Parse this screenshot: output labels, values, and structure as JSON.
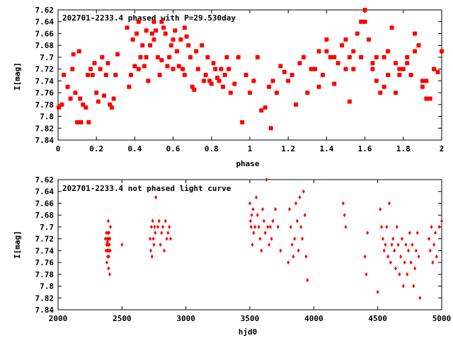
{
  "colors": {
    "points": "#ff0000",
    "axes": "#000000",
    "background": "#ffffff"
  },
  "chart_data": [
    {
      "type": "scatter",
      "title": "202701-2233.4 phased with P=29.530day",
      "xlabel": "phase",
      "ylabel": "I[mag]",
      "xlim": [
        0,
        2
      ],
      "ylim": [
        7.84,
        7.62
      ],
      "y_inverted": true,
      "grid": false,
      "x_ticks": [
        "0",
        "0.2",
        "0.4",
        "0.6",
        "0.8",
        "1",
        "1.2",
        "1.4",
        "1.6",
        "1.8",
        "2"
      ],
      "y_ticks": [
        "7.62",
        "7.64",
        "7.66",
        "7.68",
        "7.7",
        "7.72",
        "7.74",
        "7.76",
        "7.78",
        "7.8",
        "7.82",
        "7.84"
      ],
      "marker": "filled-square",
      "series": [
        {
          "x": [
            0.004,
            0.02,
            0.03,
            0.05,
            0.065,
            0.075,
            0.08,
            0.09,
            0.1,
            0.11,
            0.115,
            0.12,
            0.13,
            0.145,
            0.155,
            0.16,
            0.17,
            0.18,
            0.19,
            0.2,
            0.21,
            0.22,
            0.23,
            0.24,
            0.25,
            0.26,
            0.27,
            0.28,
            0.29,
            0.3,
            0.31,
            0.36,
            0.37,
            0.38,
            0.39,
            0.4,
            0.41,
            0.42,
            0.43,
            0.44,
            0.45,
            0.46,
            0.47,
            0.48,
            0.49,
            0.5,
            0.51,
            0.52,
            0.53,
            0.54,
            0.55,
            0.56,
            0.57,
            0.58,
            0.59,
            0.6,
            0.61,
            0.62,
            0.63,
            0.64,
            0.65,
            0.66,
            0.67,
            0.68,
            0.69,
            0.7,
            0.71,
            0.72,
            0.73,
            0.75,
            0.76,
            0.77,
            0.78,
            0.79,
            0.8,
            0.81,
            0.82,
            0.83,
            0.84,
            0.85,
            0.86,
            0.87,
            0.88,
            0.89,
            0.9,
            0.92,
            0.94,
            0.96,
            0.98,
            1.0,
            1.02,
            1.04,
            1.06,
            1.08,
            1.1,
            1.11,
            1.12,
            1.14,
            1.16,
            1.18,
            1.2,
            1.22,
            1.24,
            1.26,
            1.28,
            1.3,
            1.32,
            1.34,
            1.36,
            1.38,
            1.4,
            1.42,
            1.44,
            1.46,
            1.48,
            1.5,
            1.52,
            1.54,
            1.56,
            1.58,
            1.6,
            1.62,
            1.64,
            1.66,
            1.68,
            1.7,
            1.72,
            1.74,
            1.76,
            1.78,
            1.8,
            1.82,
            1.84,
            1.86,
            1.88,
            1.9,
            1.92,
            1.94,
            1.96,
            1.98,
            2.0
          ],
          "y": [
            7.785,
            7.78,
            7.73,
            7.75,
            7.77,
            7.72,
            7.695,
            7.76,
            7.81,
            7.69,
            7.77,
            7.81,
            7.78,
            7.785,
            7.73,
            7.81,
            7.72,
            7.73,
            7.71,
            7.76,
            7.775,
            7.72,
            7.7,
            7.765,
            7.73,
            7.71,
            7.78,
            7.785,
            7.77,
            7.73,
            7.695,
            7.65,
            7.75,
            7.73,
            7.67,
            7.715,
            7.66,
            7.64,
            7.7,
            7.68,
            7.715,
            7.655,
            7.74,
            7.68,
            7.66,
            7.64,
            7.655,
            7.7,
            7.73,
            7.705,
            7.65,
            7.66,
            7.715,
            7.7,
            7.68,
            7.72,
            7.655,
            7.69,
            7.715,
            7.67,
            7.72,
            7.73,
            7.665,
            7.68,
            7.7,
            7.75,
            7.755,
            7.69,
            7.72,
            7.68,
            7.74,
            7.73,
            7.7,
            7.74,
            7.745,
            7.71,
            7.72,
            7.735,
            7.74,
            7.72,
            7.75,
            7.73,
            7.7,
            7.72,
            7.76,
            7.745,
            7.7,
            7.81,
            7.73,
            7.76,
            7.74,
            7.7,
            7.79,
            7.785,
            7.75,
            7.82,
            7.74,
            7.76,
            7.715,
            7.725,
            7.74,
            7.73,
            7.78,
            7.71,
            7.7,
            7.76,
            7.72,
            7.72,
            7.69,
            7.73,
            7.67,
            7.7,
            7.745,
            7.71,
            7.68,
            7.72,
            7.775,
            7.69,
            7.66,
            7.7,
            7.64,
            7.67,
            7.72,
            7.7,
            7.76,
            7.7,
            7.73,
            7.65,
            7.71,
            7.72,
            7.72,
            7.7,
            7.73,
            7.66,
            7.68,
            7.75,
            7.74,
            7.77,
            7.72,
            7.725,
            7.69
          ],
          "extra_points": {
            "x": [
              1.36,
              1.4,
              1.44,
              1.5,
              1.54,
              1.6,
              1.64,
              1.72,
              1.76,
              1.84,
              1.9,
              1.96,
              0.6,
              0.66,
              0.54,
              0.5,
              0.46,
              0.42,
              1.52,
              1.58,
              1.66,
              1.7,
              1.78,
              1.82,
              1.86,
              1.92
            ],
            "y": [
              7.75,
              7.69,
              7.7,
              7.67,
              7.72,
              7.62,
              7.71,
              7.69,
              7.76,
              7.73,
              7.74,
              7.72,
              7.67,
              7.65,
              7.64,
              7.67,
              7.7,
              7.72,
              7.7,
              7.64,
              7.74,
              7.75,
              7.73,
              7.71,
              7.69,
              7.77
            ]
          }
        }
      ]
    },
    {
      "type": "scatter",
      "title": "202701-2233.4 not phased light curve",
      "xlabel": "hjd0",
      "ylabel": "I[mag]",
      "xlim": [
        2000,
        5000
      ],
      "ylim": [
        7.84,
        7.62
      ],
      "y_inverted": true,
      "grid": false,
      "x_ticks": [
        "2000",
        "2500",
        "3000",
        "3500",
        "4000",
        "4500",
        "5000"
      ],
      "y_ticks": [
        "7.62",
        "7.64",
        "7.66",
        "7.68",
        "7.7",
        "7.72",
        "7.74",
        "7.76",
        "7.78",
        "7.8",
        "7.82",
        "7.84"
      ],
      "marker": "diamond",
      "series": [
        {
          "x": [
            2370,
            2375,
            2378,
            2380,
            2382,
            2384,
            2385,
            2386,
            2388,
            2390,
            2391,
            2392,
            2393,
            2394,
            2395,
            2396,
            2397,
            2398,
            2399,
            2400,
            2402,
            2404,
            2406,
            2408,
            2410,
            2500,
            2720,
            2725,
            2730,
            2735,
            2740,
            2745,
            2750,
            2755,
            2760,
            2765,
            2780,
            2790,
            2800,
            2810,
            2820,
            2830,
            2840,
            2850,
            2860,
            2870,
            2880,
            3500,
            3505,
            3510,
            3515,
            3520,
            3525,
            3530,
            3540,
            3550,
            3560,
            3570,
            3580,
            3590,
            3600,
            3610,
            3620,
            3630,
            3640,
            3650,
            3660,
            3670,
            3680,
            3700,
            3720,
            3740,
            3800,
            3810,
            3820,
            3830,
            3840,
            3850,
            3860,
            3870,
            3880,
            3890,
            3900,
            3910,
            3920,
            3930,
            3940,
            3950,
            4230,
            4240,
            4250,
            4400,
            4410,
            4420,
            4500,
            4520,
            4530,
            4540,
            4550,
            4560,
            4570,
            4580,
            4590,
            4600,
            4610,
            4620,
            4630,
            4640,
            4650,
            4660,
            4670,
            4680,
            4690,
            4700,
            4710,
            4720,
            4730,
            4740,
            4750,
            4760,
            4770,
            4780,
            4790,
            4800,
            4810,
            4820,
            4830,
            4900,
            4910,
            4920,
            4930,
            4940,
            4950,
            4960,
            4980,
            5000
          ],
          "y": [
            7.72,
            7.74,
            7.71,
            7.73,
            7.76,
            7.72,
            7.74,
            7.725,
            7.75,
            7.73,
            7.71,
            7.74,
            7.69,
            7.72,
            7.77,
            7.73,
            7.75,
            7.72,
            7.71,
            7.74,
            7.73,
            7.78,
            7.72,
            7.74,
            7.7,
            7.73,
            7.72,
            7.74,
            7.7,
            7.75,
            7.69,
            7.72,
            7.73,
            7.7,
            7.71,
            7.65,
            7.7,
            7.69,
            7.73,
            7.71,
            7.7,
            7.74,
            7.69,
            7.72,
            7.71,
            7.7,
            7.72,
            7.66,
            7.69,
            7.7,
            7.68,
            7.73,
            7.67,
            7.71,
            7.7,
            7.65,
            7.68,
            7.7,
            7.72,
            7.74,
            7.67,
            7.69,
            7.71,
            7.62,
            7.7,
            7.73,
            7.7,
            7.72,
            7.69,
            7.67,
            7.7,
            7.74,
            7.76,
            7.67,
            7.7,
            7.73,
            7.75,
            7.72,
            7.66,
            7.69,
            7.74,
            7.65,
            7.7,
            7.72,
            7.64,
            7.68,
            7.75,
            7.79,
            7.66,
            7.68,
            7.7,
            7.75,
            7.78,
            7.71,
            7.81,
            7.67,
            7.7,
            7.72,
            7.74,
            7.73,
            7.7,
            7.75,
            7.66,
            7.76,
            7.73,
            7.72,
            7.74,
            7.77,
            7.7,
            7.73,
            7.78,
            7.75,
            7.72,
            7.8,
            7.76,
            7.73,
            7.78,
            7.74,
            7.71,
            7.76,
            7.73,
            7.8,
            7.77,
            7.74,
            7.71,
            7.75,
            7.82,
            7.72,
            7.74,
            7.7,
            7.76,
            7.73,
            7.71,
            7.75,
            7.7,
            7.69
          ]
        }
      ]
    }
  ]
}
